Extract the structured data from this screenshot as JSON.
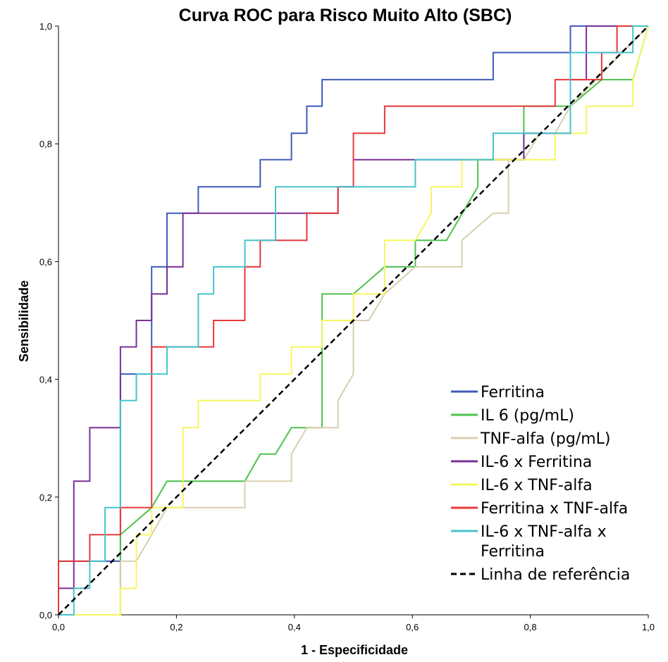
{
  "chart_data": {
    "type": "line",
    "title": "Curva ROC para Risco Muito Alto (SBC)",
    "xlabel": "1 - Especificidade",
    "ylabel": "Sensibilidade",
    "xlim": [
      0,
      1
    ],
    "ylim": [
      0,
      1
    ],
    "xticks": [
      "0,0",
      "0,2",
      "0,4",
      "0,6",
      "0,8",
      "1,0"
    ],
    "yticks": [
      "0,0",
      "0,2",
      "0,4",
      "0,6",
      "0,8",
      "1,0"
    ],
    "grid": false,
    "legend_position": "bottom-right",
    "series": [
      {
        "name": "Ferritina",
        "color": "#3f5bbd",
        "points": [
          [
            0,
            0
          ],
          [
            0,
            0.091
          ],
          [
            0.105,
            0.091
          ],
          [
            0.105,
            0.409
          ],
          [
            0.158,
            0.409
          ],
          [
            0.158,
            0.591
          ],
          [
            0.184,
            0.591
          ],
          [
            0.184,
            0.682
          ],
          [
            0.237,
            0.682
          ],
          [
            0.237,
            0.727
          ],
          [
            0.342,
            0.727
          ],
          [
            0.342,
            0.773
          ],
          [
            0.395,
            0.773
          ],
          [
            0.395,
            0.818
          ],
          [
            0.421,
            0.818
          ],
          [
            0.421,
            0.864
          ],
          [
            0.447,
            0.864
          ],
          [
            0.447,
            0.909
          ],
          [
            0.737,
            0.909
          ],
          [
            0.737,
            0.955
          ],
          [
            0.868,
            0.955
          ],
          [
            0.868,
            1
          ],
          [
            1,
            1
          ]
        ]
      },
      {
        "name": "IL 6 (pg/mL)",
        "color": "#4cc24c",
        "points": [
          [
            0,
            0
          ],
          [
            0.105,
            0
          ],
          [
            0.105,
            0.136
          ],
          [
            0.158,
            0.182
          ],
          [
            0.184,
            0.227
          ],
          [
            0.316,
            0.227
          ],
          [
            0.342,
            0.273
          ],
          [
            0.368,
            0.273
          ],
          [
            0.395,
            0.318
          ],
          [
            0.447,
            0.318
          ],
          [
            0.447,
            0.545
          ],
          [
            0.5,
            0.545
          ],
          [
            0.553,
            0.591
          ],
          [
            0.605,
            0.591
          ],
          [
            0.605,
            0.636
          ],
          [
            0.658,
            0.636
          ],
          [
            0.711,
            0.727
          ],
          [
            0.711,
            0.773
          ],
          [
            0.789,
            0.773
          ],
          [
            0.789,
            0.864
          ],
          [
            0.868,
            0.864
          ],
          [
            0.921,
            0.909
          ],
          [
            0.974,
            0.909
          ],
          [
            1,
            1
          ]
        ]
      },
      {
        "name": "TNF-alfa (pg/mL)",
        "color": "#d8cfb0",
        "points": [
          [
            0,
            0
          ],
          [
            0.105,
            0
          ],
          [
            0.105,
            0.091
          ],
          [
            0.132,
            0.091
          ],
          [
            0.158,
            0.136
          ],
          [
            0.184,
            0.182
          ],
          [
            0.316,
            0.182
          ],
          [
            0.316,
            0.227
          ],
          [
            0.395,
            0.227
          ],
          [
            0.395,
            0.273
          ],
          [
            0.421,
            0.318
          ],
          [
            0.474,
            0.318
          ],
          [
            0.474,
            0.364
          ],
          [
            0.5,
            0.409
          ],
          [
            0.5,
            0.5
          ],
          [
            0.526,
            0.5
          ],
          [
            0.553,
            0.545
          ],
          [
            0.605,
            0.591
          ],
          [
            0.684,
            0.591
          ],
          [
            0.684,
            0.636
          ],
          [
            0.737,
            0.682
          ],
          [
            0.763,
            0.682
          ],
          [
            0.763,
            0.773
          ],
          [
            0.789,
            0.773
          ],
          [
            0.816,
            0.818
          ],
          [
            0.842,
            0.818
          ],
          [
            0.868,
            0.864
          ],
          [
            1,
            1
          ]
        ]
      },
      {
        "name": "IL-6 x Ferritina",
        "color": "#7b2f96",
        "points": [
          [
            0,
            0
          ],
          [
            0,
            0.045
          ],
          [
            0.026,
            0.045
          ],
          [
            0.026,
            0.227
          ],
          [
            0.053,
            0.227
          ],
          [
            0.053,
            0.318
          ],
          [
            0.105,
            0.318
          ],
          [
            0.105,
            0.455
          ],
          [
            0.132,
            0.455
          ],
          [
            0.132,
            0.5
          ],
          [
            0.158,
            0.5
          ],
          [
            0.158,
            0.545
          ],
          [
            0.184,
            0.545
          ],
          [
            0.184,
            0.591
          ],
          [
            0.211,
            0.591
          ],
          [
            0.211,
            0.682
          ],
          [
            0.474,
            0.682
          ],
          [
            0.474,
            0.727
          ],
          [
            0.5,
            0.727
          ],
          [
            0.5,
            0.773
          ],
          [
            0.789,
            0.773
          ],
          [
            0.789,
            0.818
          ],
          [
            0.868,
            0.818
          ],
          [
            0.868,
            0.909
          ],
          [
            0.895,
            0.909
          ],
          [
            0.895,
            1
          ],
          [
            1,
            1
          ]
        ]
      },
      {
        "name": "IL-6 x TNF-alfa",
        "color": "#f6f660",
        "points": [
          [
            0,
            0
          ],
          [
            0.105,
            0
          ],
          [
            0.105,
            0.045
          ],
          [
            0.132,
            0.045
          ],
          [
            0.132,
            0.136
          ],
          [
            0.158,
            0.136
          ],
          [
            0.158,
            0.182
          ],
          [
            0.211,
            0.182
          ],
          [
            0.211,
            0.318
          ],
          [
            0.237,
            0.318
          ],
          [
            0.237,
            0.364
          ],
          [
            0.342,
            0.364
          ],
          [
            0.342,
            0.409
          ],
          [
            0.395,
            0.409
          ],
          [
            0.395,
            0.455
          ],
          [
            0.447,
            0.455
          ],
          [
            0.447,
            0.5
          ],
          [
            0.5,
            0.5
          ],
          [
            0.5,
            0.545
          ],
          [
            0.553,
            0.545
          ],
          [
            0.553,
            0.636
          ],
          [
            0.605,
            0.636
          ],
          [
            0.632,
            0.682
          ],
          [
            0.632,
            0.727
          ],
          [
            0.684,
            0.727
          ],
          [
            0.684,
            0.773
          ],
          [
            0.842,
            0.773
          ],
          [
            0.842,
            0.818
          ],
          [
            0.895,
            0.818
          ],
          [
            0.895,
            0.864
          ],
          [
            0.974,
            0.864
          ],
          [
            0.974,
            0.909
          ],
          [
            1,
            1
          ]
        ]
      },
      {
        "name": "Ferritina x TNF-alfa",
        "color": "#e8383b",
        "points": [
          [
            0,
            0
          ],
          [
            0,
            0.091
          ],
          [
            0.053,
            0.091
          ],
          [
            0.053,
            0.136
          ],
          [
            0.105,
            0.136
          ],
          [
            0.105,
            0.182
          ],
          [
            0.158,
            0.182
          ],
          [
            0.158,
            0.455
          ],
          [
            0.263,
            0.455
          ],
          [
            0.263,
            0.5
          ],
          [
            0.316,
            0.5
          ],
          [
            0.316,
            0.591
          ],
          [
            0.342,
            0.591
          ],
          [
            0.342,
            0.636
          ],
          [
            0.421,
            0.636
          ],
          [
            0.421,
            0.682
          ],
          [
            0.474,
            0.682
          ],
          [
            0.474,
            0.727
          ],
          [
            0.5,
            0.727
          ],
          [
            0.5,
            0.818
          ],
          [
            0.553,
            0.818
          ],
          [
            0.553,
            0.864
          ],
          [
            0.842,
            0.864
          ],
          [
            0.842,
            0.909
          ],
          [
            0.921,
            0.909
          ],
          [
            0.921,
            0.955
          ],
          [
            0.947,
            0.955
          ],
          [
            0.947,
            1
          ],
          [
            1,
            1
          ]
        ]
      },
      {
        "name": "IL-6 x TNF-alfa x Ferritina",
        "legend_lines": [
          "IL-6 x TNF-alfa x",
          "Ferritina"
        ],
        "color": "#45c5cb",
        "points": [
          [
            0,
            0
          ],
          [
            0.026,
            0
          ],
          [
            0.026,
            0.045
          ],
          [
            0.053,
            0.045
          ],
          [
            0.053,
            0.091
          ],
          [
            0.079,
            0.091
          ],
          [
            0.079,
            0.182
          ],
          [
            0.105,
            0.182
          ],
          [
            0.105,
            0.364
          ],
          [
            0.132,
            0.364
          ],
          [
            0.132,
            0.409
          ],
          [
            0.184,
            0.409
          ],
          [
            0.184,
            0.455
          ],
          [
            0.237,
            0.455
          ],
          [
            0.237,
            0.545
          ],
          [
            0.263,
            0.545
          ],
          [
            0.263,
            0.591
          ],
          [
            0.316,
            0.591
          ],
          [
            0.316,
            0.636
          ],
          [
            0.368,
            0.636
          ],
          [
            0.368,
            0.727
          ],
          [
            0.605,
            0.727
          ],
          [
            0.605,
            0.773
          ],
          [
            0.737,
            0.773
          ],
          [
            0.737,
            0.818
          ],
          [
            0.868,
            0.818
          ],
          [
            0.868,
            0.955
          ],
          [
            0.974,
            0.955
          ],
          [
            0.974,
            1
          ],
          [
            1,
            1
          ]
        ]
      },
      {
        "name": "Linha de referência",
        "color": "#000000",
        "dashed": true,
        "points": [
          [
            0,
            0
          ],
          [
            1,
            1
          ]
        ]
      }
    ]
  }
}
